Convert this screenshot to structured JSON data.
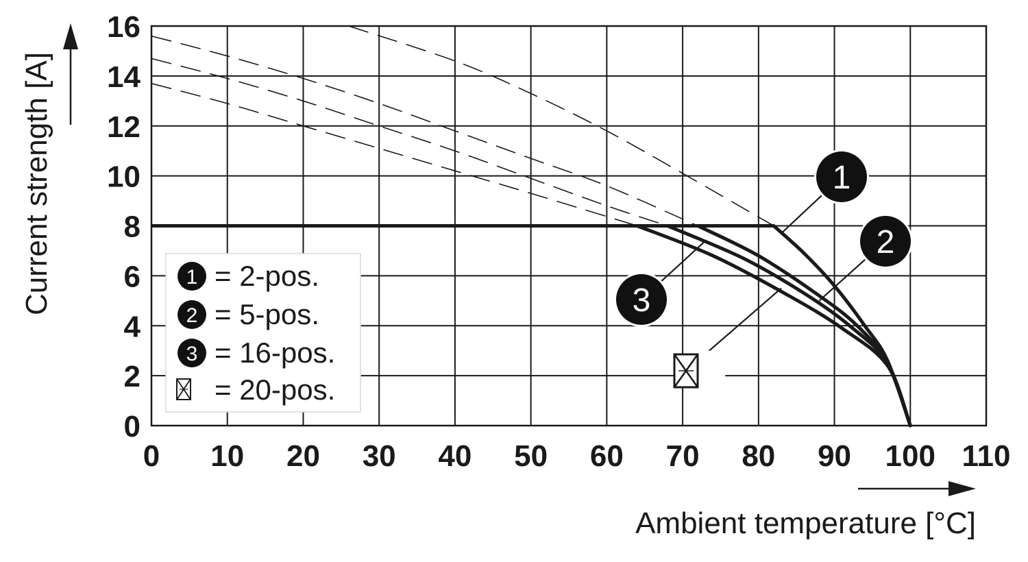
{
  "chart_data": {
    "type": "line",
    "xlabel": "Ambient temperature [°C]",
    "ylabel": "Current strength [A]",
    "xlim": [
      0,
      110
    ],
    "ylim": [
      0,
      16
    ],
    "x_ticks": [
      0,
      10,
      20,
      30,
      40,
      50,
      60,
      70,
      80,
      90,
      100,
      110
    ],
    "y_ticks": [
      0,
      2,
      4,
      6,
      8,
      10,
      12,
      14,
      16
    ],
    "grid": true,
    "legend_position": "bottom-left",
    "line_color": "#1a1a1a",
    "rated_current_line": {
      "y": 8,
      "x": [
        0,
        82
      ]
    },
    "series": [
      {
        "name": "2-pos.",
        "marker": "1",
        "derating": {
          "x": [
            82,
            86,
            90,
            94,
            97,
            100
          ],
          "y": [
            8,
            6.9,
            5.6,
            4.0,
            2.6,
            0
          ]
        },
        "dashed": {
          "x": [
            26,
            40,
            50,
            60,
            70,
            82
          ],
          "y": [
            16,
            14.6,
            13.3,
            11.8,
            10.1,
            8
          ]
        }
      },
      {
        "name": "5-pos.",
        "marker": "2",
        "derating": {
          "x": [
            72,
            80,
            88,
            93,
            97,
            100
          ],
          "y": [
            8,
            6.8,
            5.2,
            4.0,
            2.5,
            0
          ]
        },
        "dashed": {
          "x": [
            0,
            10,
            20,
            30,
            40,
            50,
            60,
            72
          ],
          "y": [
            15.6,
            14.8,
            13.9,
            12.9,
            11.8,
            10.7,
            9.6,
            8
          ]
        }
      },
      {
        "name": "16-pos.",
        "marker": "3",
        "derating": {
          "x": [
            68,
            78,
            86,
            92,
            97,
            100
          ],
          "y": [
            8,
            6.7,
            5.3,
            4.0,
            2.5,
            0
          ]
        },
        "dashed": {
          "x": [
            0,
            10,
            20,
            30,
            40,
            50,
            60,
            68
          ],
          "y": [
            14.7,
            13.9,
            13.0,
            12.0,
            11.0,
            9.9,
            8.8,
            8
          ]
        }
      },
      {
        "name": "20-pos.",
        "marker": "20pos-symbol",
        "derating": {
          "x": [
            64,
            74,
            84,
            91,
            97,
            100
          ],
          "y": [
            8,
            6.8,
            5.2,
            3.9,
            2.4,
            0
          ]
        },
        "dashed": {
          "x": [
            0,
            10,
            20,
            30,
            40,
            50,
            64
          ],
          "y": [
            13.7,
            12.9,
            12.0,
            11.1,
            10.2,
            9.3,
            8
          ]
        }
      }
    ],
    "legend": [
      {
        "marker": "1",
        "label": "= 2-pos."
      },
      {
        "marker": "2",
        "label": "= 5-pos."
      },
      {
        "marker": "3",
        "label": "= 16-pos."
      },
      {
        "marker": "20pos-symbol",
        "label": "= 20-pos."
      }
    ],
    "callouts": [
      {
        "marker": "1",
        "at": {
          "x": 83,
          "y": 7.7
        }
      },
      {
        "marker": "2",
        "at": {
          "x": 88,
          "y": 5.0
        }
      },
      {
        "marker": "3",
        "at": {
          "x": 73,
          "y": 7.4
        }
      },
      {
        "marker": "20pos-symbol",
        "at": {
          "x": 83,
          "y": 5.5
        }
      }
    ]
  }
}
